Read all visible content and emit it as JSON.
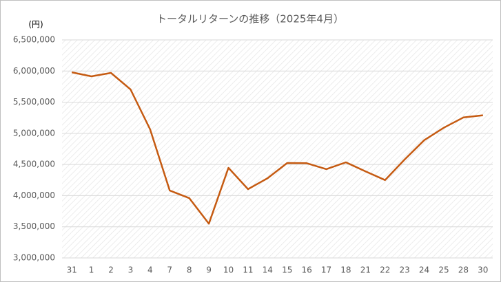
{
  "chart_data": {
    "type": "line",
    "title": "トータルリターンの推移（2025年4月）",
    "y_unit": "(円)",
    "categories": [
      "31",
      "1",
      "2",
      "3",
      "4",
      "7",
      "8",
      "9",
      "10",
      "11",
      "14",
      "15",
      "16",
      "17",
      "18",
      "21",
      "22",
      "23",
      "24",
      "25",
      "28",
      "30"
    ],
    "series": [
      {
        "name": "トータルリターン",
        "color": "#c55a11",
        "values": [
          5980000,
          5915000,
          5970000,
          5705000,
          5065000,
          4082000,
          3960000,
          3550000,
          4446000,
          4104000,
          4280000,
          4524000,
          4520000,
          4425000,
          4535000,
          4390000,
          4250000,
          4580000,
          4890000,
          5090000,
          5255000,
          5290000
        ]
      }
    ],
    "ylim": [
      3000000,
      6500000
    ],
    "yticks": [
      {
        "value": 3000000,
        "label": "3,000,000"
      },
      {
        "value": 3500000,
        "label": "3,500,000"
      },
      {
        "value": 4000000,
        "label": "4,000,000"
      },
      {
        "value": 4500000,
        "label": "4,500,000"
      },
      {
        "value": 5000000,
        "label": "5,000,000"
      },
      {
        "value": 5500000,
        "label": "5,500,000"
      },
      {
        "value": 6000000,
        "label": "6,000,000"
      },
      {
        "value": 6500000,
        "label": "6,500,000"
      }
    ],
    "grid": true
  }
}
